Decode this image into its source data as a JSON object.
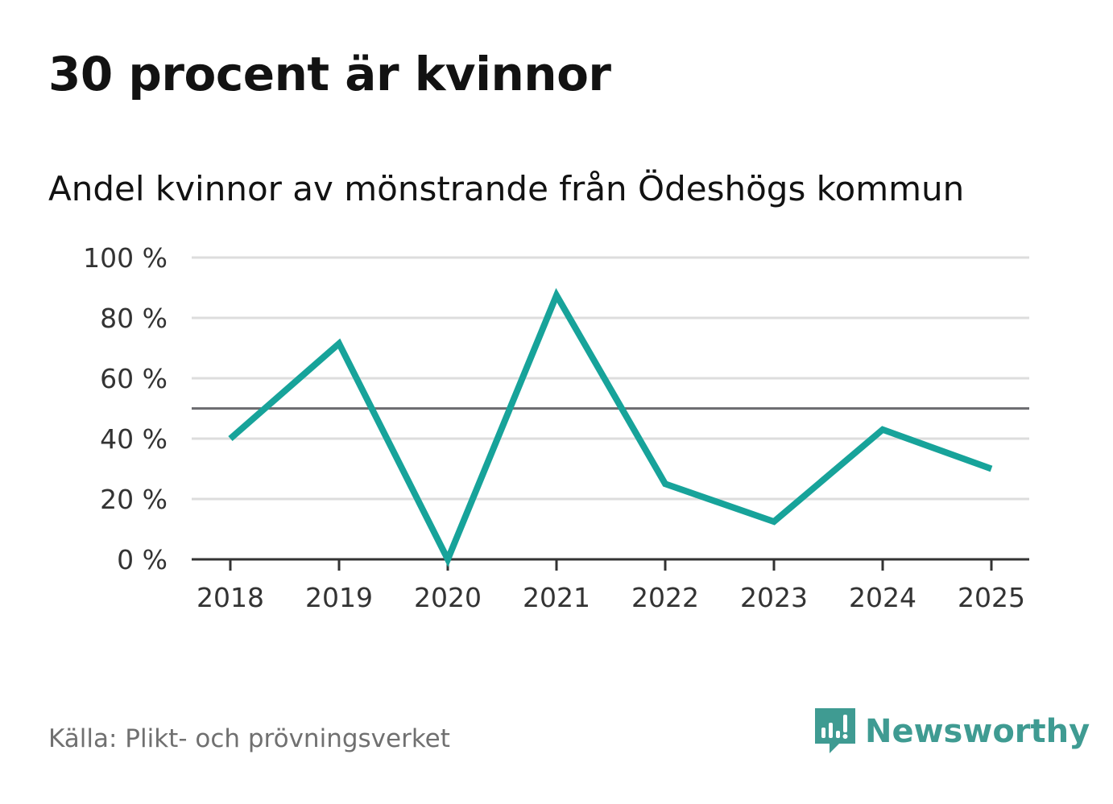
{
  "title": "30 procent är kvinnor",
  "subtitle": "Andel kvinnor av mönstrande från Ödeshögs kommun",
  "source": "Källa: Plikt- och prövningsverket",
  "brand": "Newsworthy",
  "colors": {
    "line": "#17a39a",
    "grid": "#dddddd",
    "axis": "#333333",
    "reference": "#6e6e72",
    "logo": "#3f9b92"
  },
  "chart_data": {
    "type": "line",
    "title": "Andel kvinnor av mönstrande från Ödeshögs kommun",
    "xlabel": "",
    "ylabel": "",
    "categories": [
      "2018",
      "2019",
      "2020",
      "2021",
      "2022",
      "2023",
      "2024",
      "2025"
    ],
    "series": [
      {
        "name": "Andel kvinnor",
        "values": [
          40,
          71.5,
          0,
          87.5,
          25,
          12.5,
          43,
          30
        ]
      }
    ],
    "ylim": [
      0,
      100
    ],
    "yticks": [
      0,
      20,
      40,
      60,
      80,
      100
    ],
    "ytick_labels": [
      "0 %",
      "20 %",
      "40 %",
      "60 %",
      "80 %",
      "100 %"
    ],
    "reference_line": 50,
    "grid": true
  }
}
